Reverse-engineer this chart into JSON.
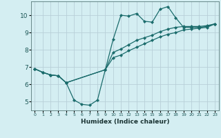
{
  "xlabel": "Humidex (Indice chaleur)",
  "xlim": [
    -0.5,
    23.5
  ],
  "ylim": [
    4.5,
    10.8
  ],
  "xticks": [
    0,
    1,
    2,
    3,
    4,
    5,
    6,
    7,
    8,
    9,
    10,
    11,
    12,
    13,
    14,
    15,
    16,
    17,
    18,
    19,
    20,
    21,
    22,
    23
  ],
  "yticks": [
    5,
    6,
    7,
    8,
    9,
    10
  ],
  "background_color": "#d4eef2",
  "grid_color": "#b8d0d8",
  "line_color": "#1a6b6b",
  "series": [
    {
      "x": [
        0,
        1,
        2,
        3,
        4,
        5,
        6,
        7,
        8,
        9,
        10,
        11,
        12,
        13,
        14,
        15,
        16,
        17,
        18,
        19,
        20,
        21,
        22,
        23
      ],
      "y": [
        6.9,
        6.7,
        6.55,
        6.5,
        6.1,
        5.1,
        4.85,
        4.8,
        5.1,
        6.85,
        8.6,
        10.0,
        9.95,
        10.1,
        9.65,
        9.6,
        10.35,
        10.5,
        9.85,
        9.3,
        9.3,
        9.3,
        9.35,
        9.5
      ]
    },
    {
      "x": [
        0,
        1,
        2,
        3,
        4,
        9,
        10,
        11,
        12,
        13,
        14,
        15,
        16,
        17,
        18,
        19,
        20,
        21,
        22,
        23
      ],
      "y": [
        6.9,
        6.7,
        6.55,
        6.5,
        6.1,
        6.85,
        7.85,
        8.05,
        8.3,
        8.55,
        8.7,
        8.85,
        9.05,
        9.2,
        9.3,
        9.35,
        9.35,
        9.35,
        9.4,
        9.5
      ]
    },
    {
      "x": [
        0,
        1,
        2,
        3,
        4,
        9,
        10,
        11,
        12,
        13,
        14,
        15,
        16,
        17,
        18,
        19,
        20,
        21,
        22,
        23
      ],
      "y": [
        6.9,
        6.7,
        6.55,
        6.5,
        6.1,
        6.85,
        7.55,
        7.7,
        7.95,
        8.15,
        8.35,
        8.55,
        8.75,
        8.9,
        9.0,
        9.15,
        9.2,
        9.25,
        9.3,
        9.5
      ]
    }
  ]
}
